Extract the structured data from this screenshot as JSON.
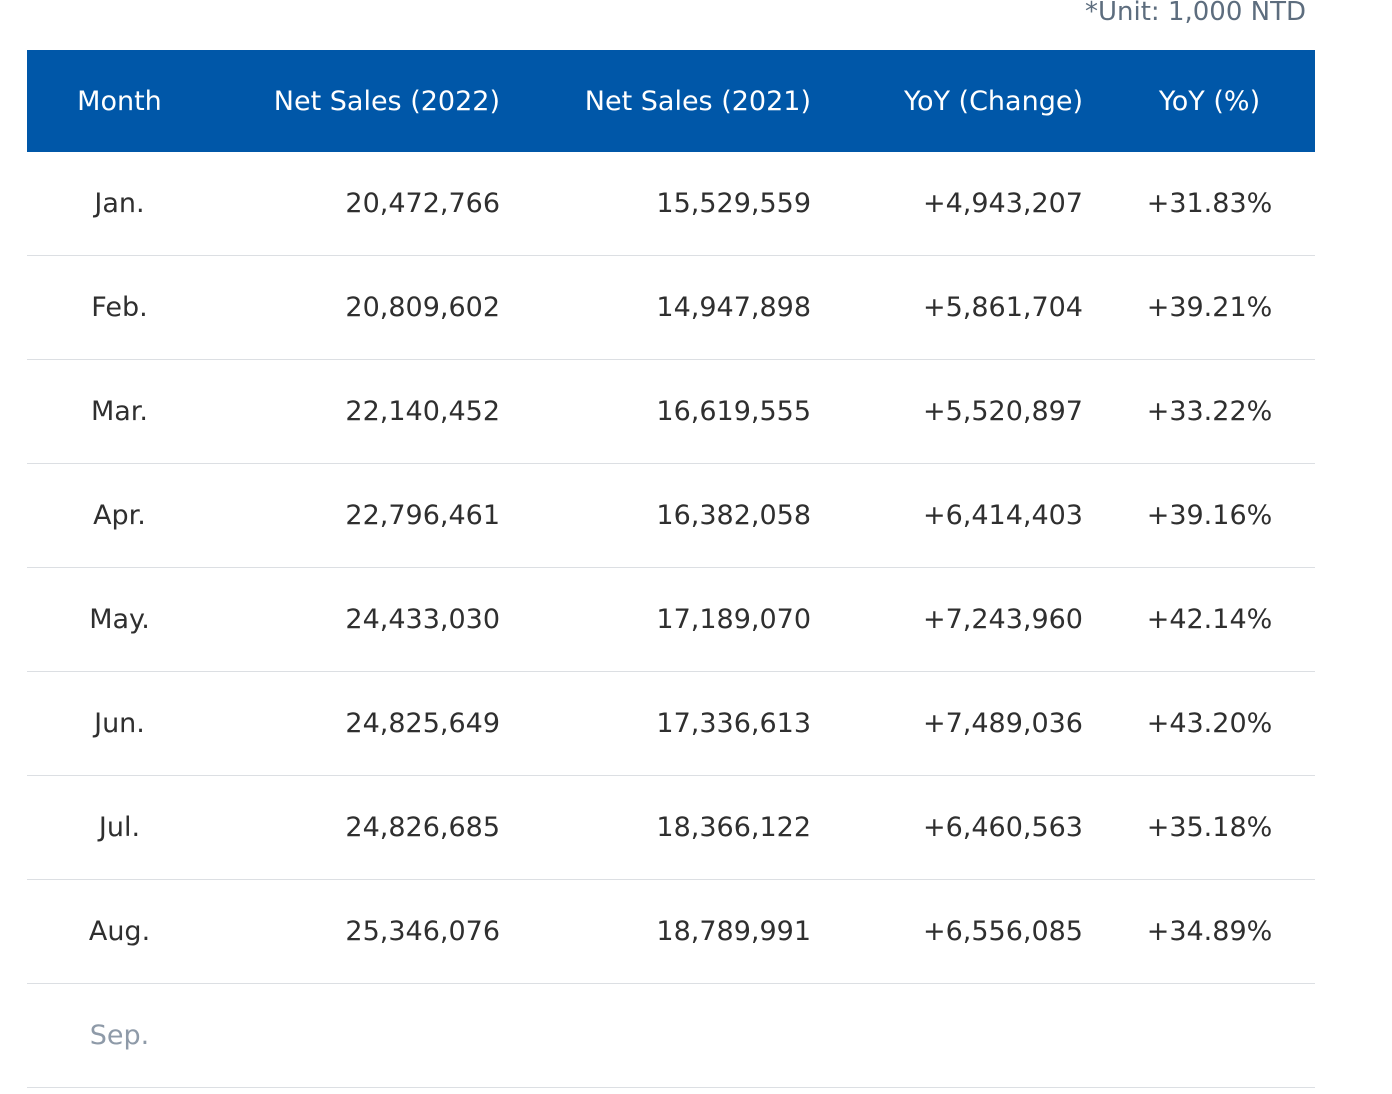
{
  "unit_note": "*Unit: 1,000 NTD",
  "headers": {
    "month": "Month",
    "net_sales_2022": "Net Sales (2022)",
    "net_sales_2021": "Net Sales (2021)",
    "yoy_change": "YoY (Change)",
    "yoy_pct": "YoY (%)"
  },
  "rows": [
    {
      "month": "Jan.",
      "net_sales_2022": "20,472,766",
      "net_sales_2021": "15,529,559",
      "yoy_change": "+4,943,207",
      "yoy_pct": "+31.83%"
    },
    {
      "month": "Feb.",
      "net_sales_2022": "20,809,602",
      "net_sales_2021": "14,947,898",
      "yoy_change": "+5,861,704",
      "yoy_pct": "+39.21%"
    },
    {
      "month": "Mar.",
      "net_sales_2022": "22,140,452",
      "net_sales_2021": "16,619,555",
      "yoy_change": "+5,520,897",
      "yoy_pct": "+33.22%"
    },
    {
      "month": "Apr.",
      "net_sales_2022": "22,796,461",
      "net_sales_2021": "16,382,058",
      "yoy_change": "+6,414,403",
      "yoy_pct": "+39.16%"
    },
    {
      "month": "May.",
      "net_sales_2022": "24,433,030",
      "net_sales_2021": "17,189,070",
      "yoy_change": "+7,243,960",
      "yoy_pct": "+42.14%"
    },
    {
      "month": "Jun.",
      "net_sales_2022": "24,825,649",
      "net_sales_2021": "17,336,613",
      "yoy_change": "+7,489,036",
      "yoy_pct": "+43.20%"
    },
    {
      "month": "Jul.",
      "net_sales_2022": "24,826,685",
      "net_sales_2021": "18,366,122",
      "yoy_change": "+6,460,563",
      "yoy_pct": "+35.18%"
    },
    {
      "month": "Aug.",
      "net_sales_2022": "25,346,076",
      "net_sales_2021": "18,789,991",
      "yoy_change": "+6,556,085",
      "yoy_pct": "+34.89%"
    },
    {
      "month": "Sep.",
      "net_sales_2022": "",
      "net_sales_2021": "",
      "yoy_change": "",
      "yoy_pct": ""
    }
  ],
  "colors": {
    "header_bg": "#0057a8",
    "header_text": "#ffffff",
    "row_text": "#2f2f2f",
    "pending_text": "#8e9aa8",
    "divider": "#dcdfe3"
  }
}
